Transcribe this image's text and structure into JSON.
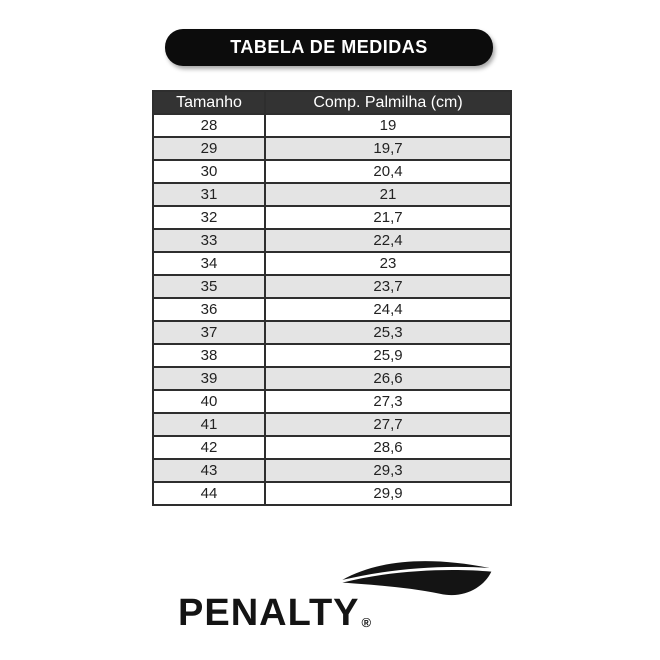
{
  "title_banner": {
    "label": "TABELA DE MEDIDAS",
    "background_color": "#0c0c0c",
    "text_color": "#ffffff"
  },
  "table": {
    "headers": [
      "Tamanho",
      "Comp. Palmilha (cm)"
    ],
    "header_background_color": "#333333",
    "header_text_color": "#ffffff",
    "row_alt_background_color": "#e4e4e4",
    "border_color": "#2e2e2e",
    "rows": [
      {
        "size": "28",
        "insole": "19"
      },
      {
        "size": "29",
        "insole": "19,7"
      },
      {
        "size": "30",
        "insole": "20,4"
      },
      {
        "size": "31",
        "insole": "21"
      },
      {
        "size": "32",
        "insole": "21,7"
      },
      {
        "size": "33",
        "insole": "22,4"
      },
      {
        "size": "34",
        "insole": "23"
      },
      {
        "size": "35",
        "insole": "23,7"
      },
      {
        "size": "36",
        "insole": "24,4"
      },
      {
        "size": "37",
        "insole": "25,3"
      },
      {
        "size": "38",
        "insole": "25,9"
      },
      {
        "size": "39",
        "insole": "26,6"
      },
      {
        "size": "40",
        "insole": "27,3"
      },
      {
        "size": "41",
        "insole": "27,7"
      },
      {
        "size": "42",
        "insole": "28,6"
      },
      {
        "size": "43",
        "insole": "29,3"
      },
      {
        "size": "44",
        "insole": "29,9"
      }
    ]
  },
  "logo": {
    "wordmark": "PENALTY",
    "registered": "®",
    "icon": "penalty-swoosh-icon",
    "color": "#141414"
  }
}
